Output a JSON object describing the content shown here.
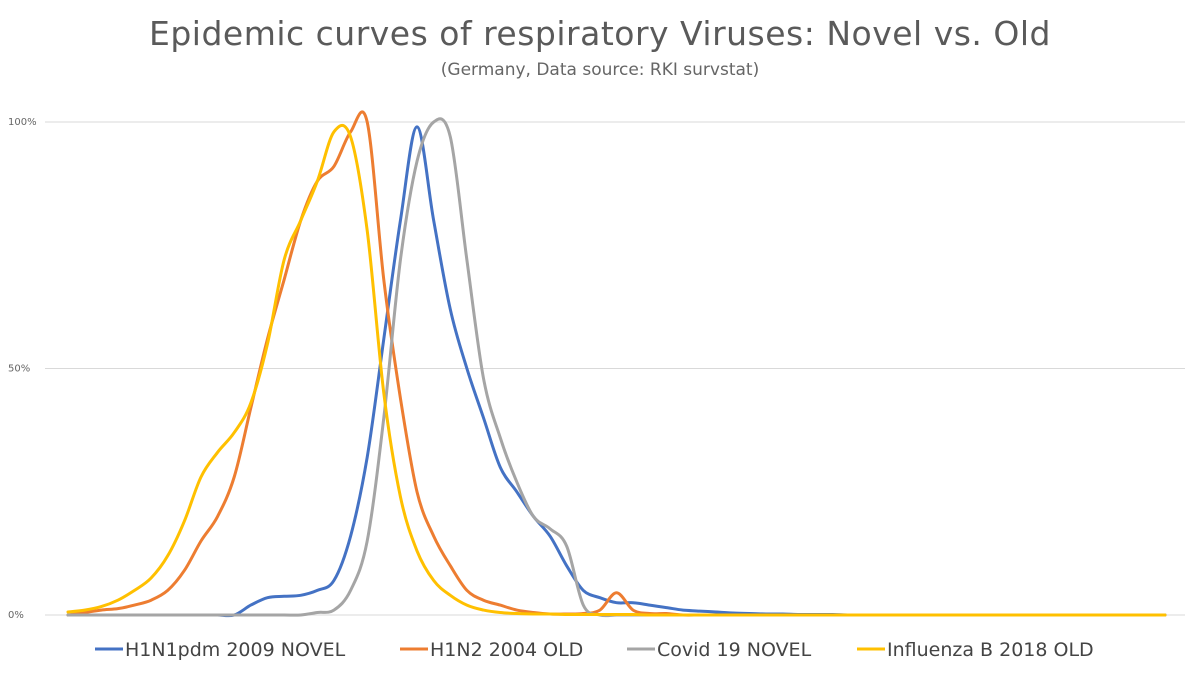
{
  "chart_data": {
    "type": "line",
    "title": "Epidemic curves of respiratory Viruses: Novel vs. Old",
    "subtitle": "(Germany, Data source: RKI survstat)",
    "xlabel": "",
    "ylabel": "",
    "ylim": [
      0,
      100
    ],
    "y_ticks": [
      "0%",
      "50%",
      "100%"
    ],
    "grid": "horizontal",
    "legend": "bottom",
    "x": [
      0,
      1,
      2,
      3,
      4,
      5,
      6,
      7,
      8,
      9,
      10,
      11,
      12,
      13,
      14,
      15,
      16,
      17,
      18,
      19,
      20,
      21,
      22,
      23,
      24,
      25,
      26,
      27,
      28,
      29,
      30,
      31,
      32,
      33,
      34,
      35,
      36,
      37,
      38,
      39,
      40,
      41,
      42,
      43,
      44,
      45,
      46,
      47,
      48,
      49,
      50,
      51,
      52,
      53,
      54,
      55,
      56,
      57,
      58,
      59,
      60,
      61,
      62,
      63,
      64,
      65,
      66
    ],
    "series": [
      {
        "name": "H1N1pdm  2009 NOVEL",
        "color": "#4472c4",
        "values": [
          0,
          0,
          0,
          0,
          0,
          0,
          0,
          0,
          0,
          0,
          0,
          2,
          3.5,
          3.8,
          4,
          5,
          7,
          16,
          32,
          56,
          80,
          99,
          80,
          62,
          50,
          40,
          30,
          25,
          20,
          16,
          10,
          5,
          3.5,
          2.5,
          2.5,
          2,
          1.5,
          1,
          0.8,
          0.6,
          0.4,
          0.3,
          0.2,
          0.2,
          0.1,
          0.1,
          0.1,
          0,
          0,
          0,
          0,
          0,
          0,
          0,
          0,
          0,
          0,
          0,
          0,
          0,
          0,
          0,
          0,
          0,
          0,
          0,
          0
        ]
      },
      {
        "name": "H1N2 2004 OLD",
        "color": "#ed7d31",
        "values": [
          0,
          0.5,
          1,
          1.3,
          2,
          3,
          5,
          9,
          15,
          20,
          28,
          42,
          56,
          68,
          80,
          88,
          91,
          98,
          100,
          68,
          44,
          25,
          16,
          10,
          5,
          3,
          2,
          1,
          0.5,
          0.2,
          0.2,
          0.3,
          1,
          4.5,
          1,
          0.3,
          0.3,
          0,
          0,
          0,
          0,
          0,
          0,
          0,
          0,
          0,
          0,
          0,
          0,
          0,
          0,
          0,
          0,
          0,
          0,
          0,
          0,
          0,
          0,
          0,
          0,
          0,
          0,
          0,
          0,
          0,
          0
        ]
      },
      {
        "name": "Covid 19 NOVEL",
        "color": "#a5a5a5",
        "values": [
          0,
          0,
          0,
          0,
          0,
          0,
          0,
          0,
          0,
          0,
          0,
          0,
          0,
          0,
          0,
          0.5,
          1,
          5,
          15,
          40,
          72,
          92,
          100,
          97,
          72,
          48,
          36,
          27,
          20,
          17.5,
          14,
          2,
          0,
          0,
          0,
          0,
          0,
          0,
          0,
          0,
          0,
          0,
          0,
          0,
          0,
          0,
          0,
          0,
          0,
          0,
          0,
          0,
          0,
          0,
          0,
          0,
          0,
          0,
          0,
          0,
          0,
          0,
          0,
          0,
          0,
          0,
          0
        ]
      },
      {
        "name": "Influenza B 2018 OLD",
        "color": "#ffc000",
        "values": [
          0.6,
          1,
          1.7,
          3,
          5,
          7.5,
          12,
          19,
          28,
          33,
          37,
          43,
          55,
          72,
          80,
          88,
          98,
          97,
          78,
          45,
          24,
          13,
          7,
          4,
          2,
          1,
          0.5,
          0.3,
          0.2,
          0.2,
          0.1,
          0.1,
          0.1,
          0.1,
          0.1,
          0,
          0,
          0,
          0,
          0,
          0,
          0,
          0,
          0,
          0,
          0,
          0,
          0,
          0,
          0,
          0,
          0,
          0,
          0,
          0,
          0,
          0,
          0,
          0,
          0,
          0,
          0,
          0,
          0,
          0,
          0,
          0
        ]
      }
    ]
  }
}
